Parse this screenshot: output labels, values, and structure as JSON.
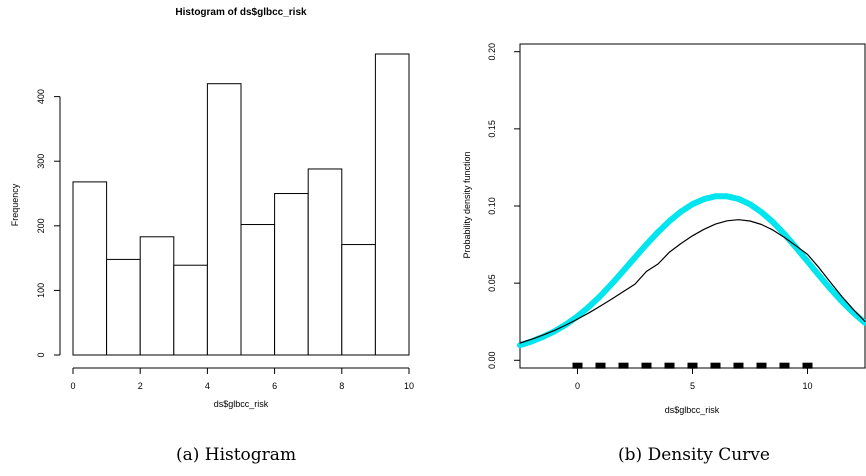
{
  "chart_data": [
    {
      "type": "bar",
      "title": "Histogram of ds$glbcc_risk",
      "xlabel": "ds$glbcc_risk",
      "ylabel": "Frequency",
      "caption": "(a) Histogram",
      "bins": [
        {
          "x0": 0,
          "x1": 1,
          "value": 268
        },
        {
          "x0": 1,
          "x1": 2,
          "value": 148
        },
        {
          "x0": 2,
          "x1": 3,
          "value": 183
        },
        {
          "x0": 3,
          "x1": 4,
          "value": 139
        },
        {
          "x0": 4,
          "x1": 5,
          "value": 420
        },
        {
          "x0": 5,
          "x1": 6,
          "value": 202
        },
        {
          "x0": 6,
          "x1": 7,
          "value": 250
        },
        {
          "x0": 7,
          "x1": 8,
          "value": 288
        },
        {
          "x0": 8,
          "x1": 9,
          "value": 171
        },
        {
          "x0": 9,
          "x1": 10,
          "value": 466
        }
      ],
      "xlim": [
        0,
        10
      ],
      "ylim": [
        0,
        466
      ],
      "xticks": [
        "0",
        "2",
        "4",
        "6",
        "8",
        "10"
      ],
      "yticks": [
        "0",
        "100",
        "200",
        "300",
        "400"
      ],
      "bar_fill": "#ffffff",
      "bar_stroke": "#000000"
    },
    {
      "type": "line",
      "xlabel": "ds$glbcc_risk",
      "ylabel": "Probability density function",
      "caption": "(b) Density Curve",
      "xlim": [
        -2.5,
        12.5
      ],
      "ylim": [
        -0.005,
        0.205
      ],
      "xticks": [
        "0",
        "5",
        "10"
      ],
      "yticks": [
        "0.00",
        "0.05",
        "0.10",
        "0.15",
        "0.20"
      ],
      "series": [
        {
          "color": "#00e5ee",
          "x": [
            -2.5,
            -2,
            -1.5,
            -1,
            -0.5,
            0,
            0.5,
            1,
            1.5,
            2,
            2.5,
            3,
            3.5,
            4,
            4.5,
            5,
            5.5,
            6,
            6.5,
            7,
            7.5,
            8,
            8.5,
            9,
            9.5,
            10,
            10.5,
            11,
            11.5,
            12,
            12.5
          ],
          "y": [
            0.0098,
            0.0122,
            0.0152,
            0.0188,
            0.0232,
            0.0285,
            0.0347,
            0.0418,
            0.0497,
            0.0581,
            0.0667,
            0.0752,
            0.0831,
            0.0903,
            0.0964,
            0.1012,
            0.1045,
            0.1063,
            0.1063,
            0.1046,
            0.1011,
            0.096,
            0.0895,
            0.0817,
            0.0731,
            0.0641,
            0.055,
            0.0463,
            0.0381,
            0.0307,
            0.0243
          ]
        },
        {
          "color": "#000000",
          "x": [
            -2.5,
            -2,
            -1.5,
            -1,
            -0.5,
            0,
            0.5,
            1,
            1.5,
            2,
            2.5,
            3,
            3.5,
            4,
            4.5,
            5,
            5.5,
            6,
            6.5,
            7,
            7.5,
            8,
            8.5,
            9,
            9.5,
            10,
            10.5,
            11,
            11.5,
            12,
            12.5
          ],
          "y": [
            0.0112,
            0.0136,
            0.0163,
            0.0194,
            0.0229,
            0.0267,
            0.0308,
            0.0352,
            0.0398,
            0.0446,
            0.0494,
            0.0576,
            0.0624,
            0.0701,
            0.0757,
            0.0807,
            0.0849,
            0.0883,
            0.0904,
            0.0911,
            0.0903,
            0.088,
            0.0844,
            0.0796,
            0.0742,
            0.0686,
            0.06,
            0.0505,
            0.0413,
            0.0328,
            0.0252
          ]
        }
      ],
      "rug": [
        0,
        1,
        2,
        3,
        4,
        5,
        6,
        7,
        8,
        9,
        10
      ],
      "rug_y": -0.0035
    }
  ]
}
